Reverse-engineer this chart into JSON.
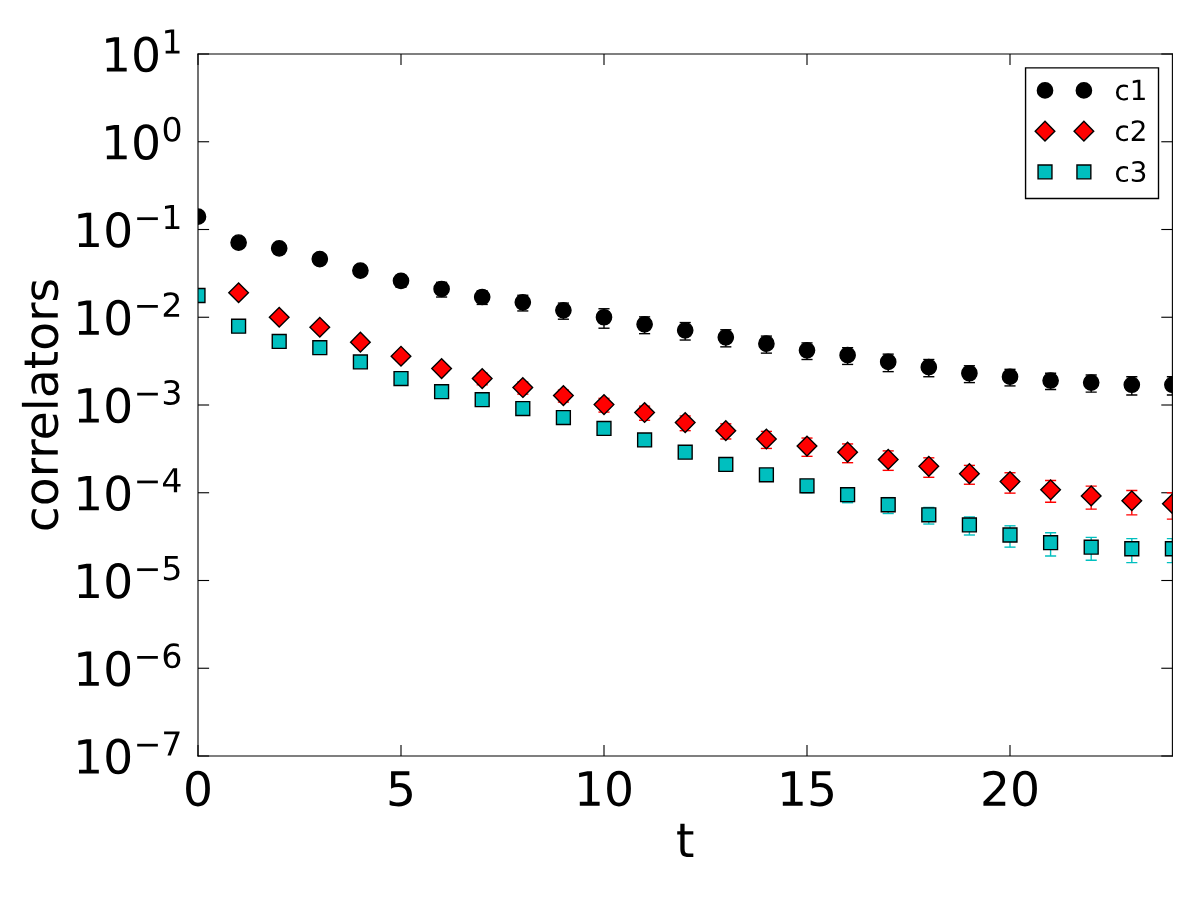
{
  "chart_data": {
    "type": "scatter",
    "xlabel": "t",
    "ylabel": "correlators",
    "x": [
      0,
      1,
      2,
      3,
      4,
      5,
      6,
      7,
      8,
      9,
      10,
      11,
      12,
      13,
      14,
      15,
      16,
      17,
      18,
      19,
      20,
      21,
      22,
      23,
      24
    ],
    "series": [
      {
        "name": "c1",
        "color": "#000000",
        "marker": "circle",
        "values": [
          0.14,
          0.071,
          0.061,
          0.046,
          0.034,
          0.026,
          0.021,
          0.017,
          0.0148,
          0.012,
          0.01,
          0.0083,
          0.0071,
          0.0059,
          0.005,
          0.0042,
          0.0037,
          0.0031,
          0.0027,
          0.0023,
          0.0021,
          0.0019,
          0.0018,
          0.0017,
          0.0017
        ],
        "errors": [
          0.01,
          0.005,
          0.005,
          0.004,
          0.004,
          0.004,
          0.004,
          0.003,
          0.003,
          0.0025,
          0.0025,
          0.0018,
          0.0016,
          0.0013,
          0.0011,
          0.0009,
          0.0008,
          0.0007,
          0.0006,
          0.0005,
          0.00045,
          0.0004,
          0.0004,
          0.0004,
          0.0004
        ]
      },
      {
        "name": "c2",
        "color": "#ff0000",
        "marker": "diamond",
        "values": [
          null,
          0.019,
          0.01,
          0.0077,
          0.0052,
          0.0036,
          0.0026,
          0.002,
          0.00158,
          0.00128,
          0.00101,
          0.00082,
          0.00063,
          0.00051,
          0.00041,
          0.00034,
          0.00029,
          0.00024,
          0.0002,
          0.000165,
          0.000134,
          0.000108,
          9.2e-05,
          8.1e-05,
          7.5e-05
        ],
        "errors": [
          null,
          0.0015,
          0.001,
          0.0008,
          0.0006,
          0.0004,
          0.0003,
          0.0003,
          0.00025,
          0.0002,
          0.00018,
          0.00015,
          0.00012,
          0.0001,
          9e-05,
          8e-05,
          7e-05,
          6e-05,
          5e-05,
          4e-05,
          3.5e-05,
          3e-05,
          2.7e-05,
          2.5e-05,
          2.5e-05
        ]
      },
      {
        "name": "c3",
        "color": "#00bfbf",
        "marker": "square",
        "values": [
          0.0177,
          0.0079,
          0.0053,
          0.0045,
          0.0031,
          0.002,
          0.00142,
          0.00115,
          0.00091,
          0.00072,
          0.00054,
          0.0004,
          0.00029,
          0.00021,
          0.00016,
          0.00012,
          9.5e-05,
          7.3e-05,
          5.6e-05,
          4.3e-05,
          3.3e-05,
          2.7e-05,
          2.4e-05,
          2.3e-05,
          2.3e-05
        ],
        "errors": [
          null,
          0.0007,
          0.0005,
          0.0004,
          0.0003,
          0.0002,
          0.00015,
          0.00012,
          0.0001,
          8e-05,
          6e-05,
          5e-05,
          4e-05,
          3e-05,
          2.5e-05,
          2e-05,
          1.8e-05,
          1.5e-05,
          1.2e-05,
          1e-05,
          9e-06,
          8e-06,
          7e-06,
          7e-06,
          7e-06
        ]
      }
    ],
    "log": "y",
    "xlim": [
      0,
      24
    ],
    "xticks": [
      0,
      5,
      10,
      15,
      20
    ],
    "ylim": [
      1e-07,
      10
    ],
    "yticks": [
      {
        "value": 1e-07,
        "label": "10$^{−7}$"
      },
      {
        "value": 1e-06,
        "label": "10$^{−6}$"
      },
      {
        "value": 1e-05,
        "label": "10$^{−5}$"
      },
      {
        "value": 0.0001,
        "label": "10$^{−4}$"
      },
      {
        "value": 0.001,
        "label": "10$^{−3}$"
      },
      {
        "value": 0.01,
        "label": "10$^{−2}$"
      },
      {
        "value": 0.1,
        "label": "10$^{−1}$"
      },
      {
        "value": 1,
        "label": "10$^{0}$"
      },
      {
        "value": 10,
        "label": "10$^{1}$"
      }
    ],
    "grid": false,
    "legend": "top right"
  }
}
